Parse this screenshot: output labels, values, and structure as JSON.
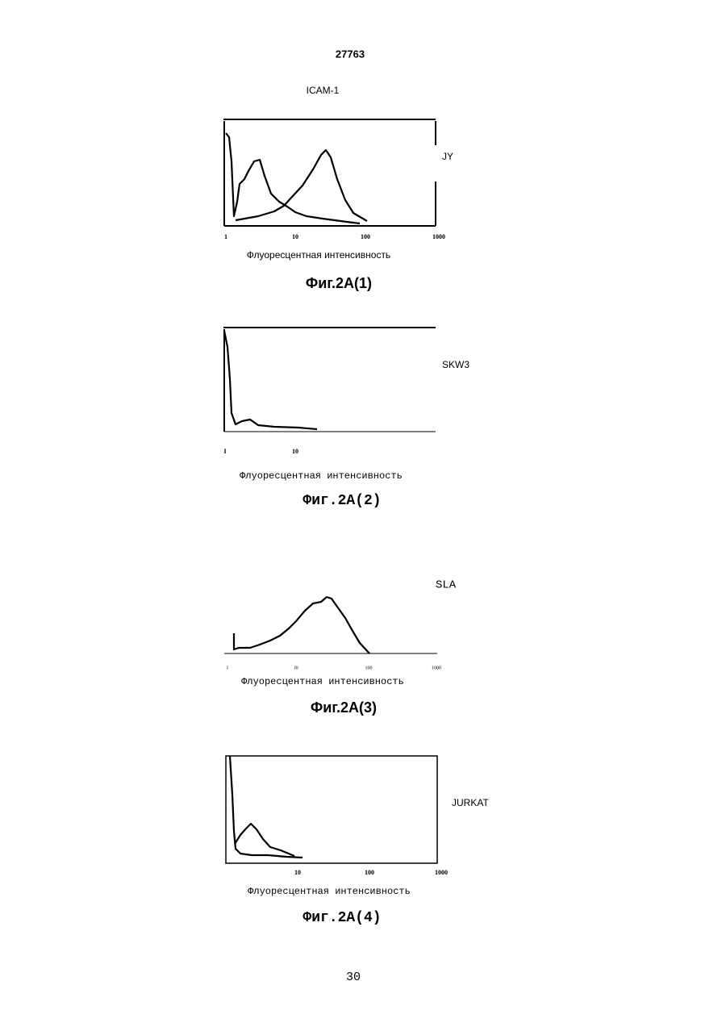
{
  "header": {
    "number": "27763",
    "antigen": "ICAM-1"
  },
  "figures": [
    {
      "cell_line": "JY",
      "x_ticks": [
        "1",
        "10",
        "100",
        "1000"
      ],
      "x_label": "Флуоресцентная интенсивность",
      "caption": "Фиг.2A(1)"
    },
    {
      "cell_line": "SKW3",
      "x_ticks": [
        "I",
        "10"
      ],
      "x_label": "Флуоресцентная интенсивность",
      "caption": "Фиг.2A(2)"
    },
    {
      "cell_line": "SLA",
      "x_ticks": [
        "I",
        "J0",
        "100",
        "1000"
      ],
      "x_label": "Флуоресцентная интенсивность",
      "caption": "Фиг.2A(3)"
    },
    {
      "cell_line": "JURKAT",
      "x_ticks": [
        "10",
        "100",
        "1000"
      ],
      "x_label": "Флуоресцентная интенсивность",
      "caption": "Фиг.2A(4)"
    }
  ],
  "page_number": "30"
}
